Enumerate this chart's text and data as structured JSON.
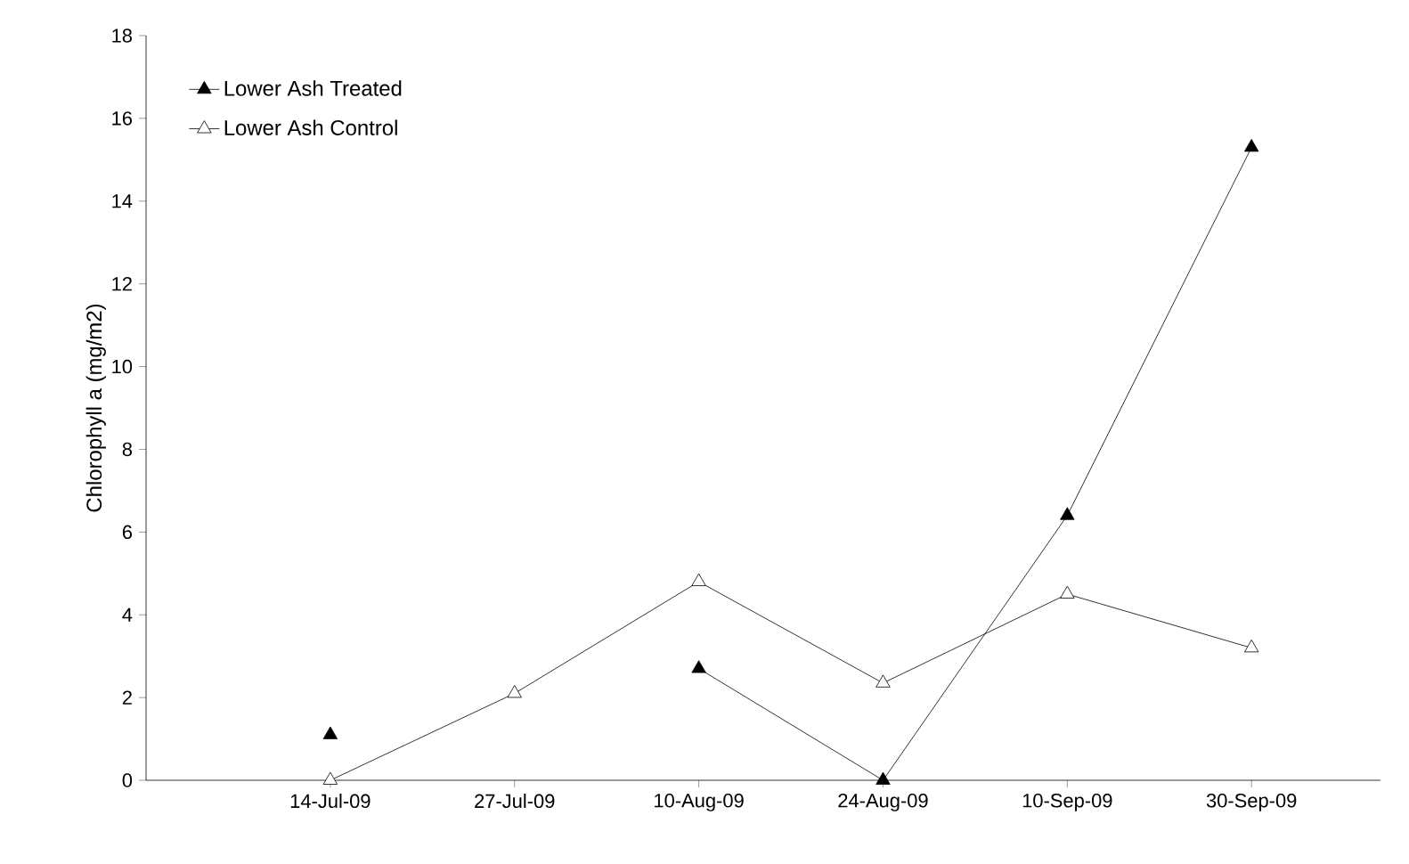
{
  "chart_data": {
    "type": "line",
    "ylabel": "Chlorophyll a (mg/m2)",
    "categories": [
      "14-Jul-09",
      "27-Jul-09",
      "10-Aug-09",
      "24-Aug-09",
      "10-Sep-09",
      "30-Sep-09"
    ],
    "series": [
      {
        "name": "Lower Ash  Treated",
        "color": "#000000",
        "values": [
          1.1,
          null,
          2.7,
          0,
          6.4,
          15.3
        ]
      },
      {
        "name": "Lower Ash  Control",
        "color": "#ffffff",
        "values": [
          0,
          2.1,
          4.8,
          2.35,
          4.5,
          3.2
        ]
      }
    ],
    "ylim": [
      0,
      18
    ],
    "yticks": [
      0,
      2,
      4,
      6,
      8,
      10,
      12,
      14,
      16,
      18
    ],
    "grid": false,
    "legend": "top left",
    "marker": "triangle",
    "line_style": "solid"
  }
}
